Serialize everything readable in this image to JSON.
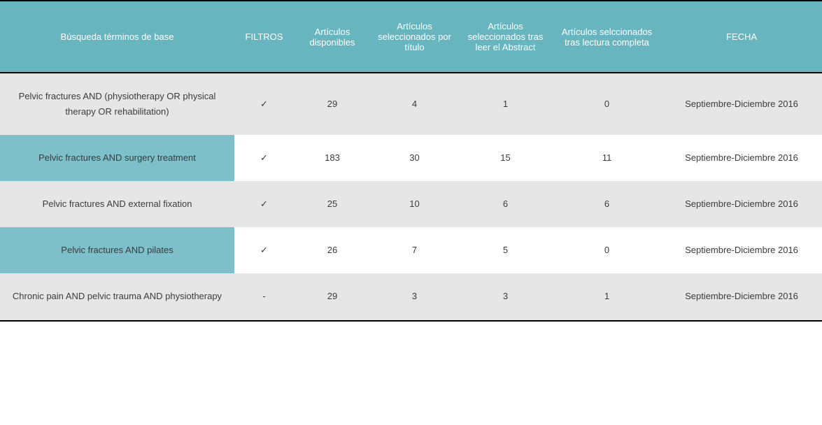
{
  "colors": {
    "header_bg": "#67b5bf",
    "header_text": "#ffffff",
    "row_odd_first_bg": "#e6e6e6",
    "row_odd_rest_bg": "#e6e6e6",
    "row_even_first_bg": "#7ec0c9",
    "row_even_rest_bg": "#ffffff",
    "body_text": "#3b3b3b",
    "border": "#000000"
  },
  "table": {
    "headers": [
      "Búsqueda términos de base",
      "FILTROS",
      "Artículos disponibles",
      "Artículos seleccionados por título",
      "Artículos seleccionados tras leer el Abstract",
      "Artículos selccionados tras lectura completa",
      "FECHA"
    ],
    "rows": [
      {
        "terms": "Pelvic fractures AND (physiotherapy OR physical therapy OR rehabilitation)",
        "filters": "✓",
        "available": "29",
        "by_title": "4",
        "by_abstract": "1",
        "by_fulltext": "0",
        "date": "Septiembre-Diciembre 2016"
      },
      {
        "terms": "Pelvic fractures AND surgery treatment",
        "filters": "✓",
        "available": "183",
        "by_title": "30",
        "by_abstract": "15",
        "by_fulltext": "11",
        "date": "Septiembre-Diciembre 2016"
      },
      {
        "terms": "Pelvic fractures AND external fixation",
        "filters": "✓",
        "available": "25",
        "by_title": "10",
        "by_abstract": "6",
        "by_fulltext": "6",
        "date": "Septiembre-Diciembre 2016"
      },
      {
        "terms": "Pelvic fractures AND pilates",
        "filters": "✓",
        "available": "26",
        "by_title": "7",
        "by_abstract": "5",
        "by_fulltext": "0",
        "date": "Septiembre-Diciembre 2016"
      },
      {
        "terms": "Chronic pain AND pelvic trauma AND physiotherapy",
        "filters": "-",
        "available": "29",
        "by_title": "3",
        "by_abstract": "3",
        "by_fulltext": "1",
        "date": "Septiembre-Diciembre 2016"
      }
    ]
  }
}
